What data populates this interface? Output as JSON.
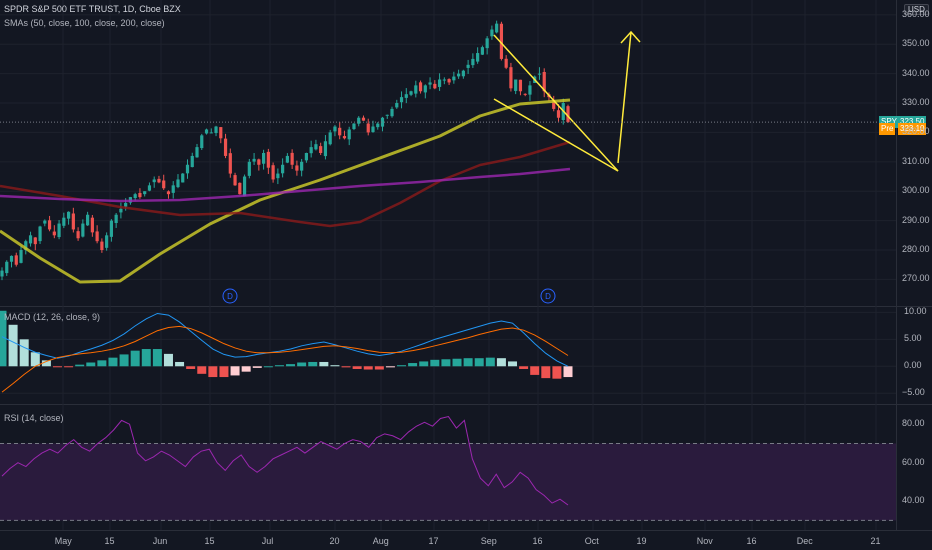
{
  "header": {
    "title": "SPDR S&P 500 ETF TRUST, 1D, Cboe BZX",
    "sma_label": "SMAs (50, close, 100, close, 200, close)",
    "currency": "USD"
  },
  "macd_label": "MACD (12, 26, close, 9)",
  "rsi_label": "RSI (14, close)",
  "last_price": {
    "symbol": "SPY",
    "value": "323.50",
    "color": "#26a69a"
  },
  "pre_price": {
    "symbol": "Pre",
    "value": "323.10",
    "color": "#ff9800"
  },
  "dividend_marker": "D",
  "colors": {
    "up": "#26a69a",
    "down": "#ef5350",
    "sma50": "#c8c629",
    "sma100": "#8b1a1a",
    "sma200": "#9c27b0",
    "pattern": "#ffeb3b",
    "macd": "#2196f3",
    "signal": "#ff6d00",
    "rsi": "#9c27b0"
  },
  "chart_data": [
    {
      "type": "candlestick",
      "title": "SPDR S&P 500 ETF TRUST, 1D, Cboe BZX",
      "x_ticks": [
        "May",
        "15",
        "Jun",
        "15",
        "Jul",
        "20",
        "Aug",
        "17",
        "Sep",
        "16",
        "Oct",
        "19",
        "Nov",
        "16",
        "Dec",
        "21"
      ],
      "y_ticks": [
        270,
        280,
        290,
        300,
        310,
        320,
        330,
        340,
        350,
        360
      ],
      "ylim": [
        263,
        363
      ],
      "close_series": [
        273,
        276,
        278,
        275,
        280,
        283,
        285,
        282,
        288,
        290,
        287,
        285,
        289,
        291,
        293,
        287,
        284,
        289,
        292,
        286,
        283,
        280,
        285,
        290,
        292,
        294,
        296,
        298,
        299,
        298,
        300,
        302,
        304,
        303,
        301,
        299,
        302,
        304,
        306,
        309,
        312,
        315,
        319,
        321,
        320,
        322,
        318,
        312,
        306,
        302,
        299,
        305,
        310,
        311,
        309,
        313,
        308,
        304,
        306,
        309,
        312,
        309,
        307,
        310,
        313,
        315,
        316,
        313,
        317,
        320,
        322,
        319,
        318,
        321,
        323,
        325,
        324,
        320,
        322,
        323,
        325,
        326,
        328,
        330,
        332,
        333,
        334,
        336,
        334,
        336,
        337,
        335,
        338,
        338,
        337,
        339,
        340,
        341,
        343,
        345,
        347,
        349,
        352,
        355,
        357,
        345,
        342,
        335,
        338,
        334,
        333,
        336,
        339,
        340,
        334,
        332,
        328,
        325,
        330,
        323.5
      ],
      "sma": [
        {
          "name": "SMA 50",
          "start": 273,
          "end": 333
        },
        {
          "name": "SMA 100",
          "start": 303,
          "end": 320
        },
        {
          "name": "SMA 200",
          "start": 301,
          "end": 311
        }
      ],
      "annotations": [
        "falling wedge",
        "upward arrow"
      ],
      "last_price": 323.5,
      "pre_market": 323.1
    },
    {
      "type": "histogram",
      "title": "MACD (12, 26, close, 9)",
      "y_ticks": [
        10.0,
        5.0,
        0.0,
        -5.0
      ],
      "ylim": [
        -7,
        11
      ],
      "series": [
        {
          "name": "MACD",
          "values": [
            5.5,
            4.5,
            3.5,
            2.6,
            2.0,
            1.5,
            1.9,
            2.6,
            3.2,
            3.9,
            4.8,
            6.0,
            7.5,
            8.8,
            9.8,
            9.5,
            8.2,
            6.5,
            4.8,
            3.2,
            2.2,
            1.7,
            1.8,
            2.2,
            2.5,
            2.8,
            3.2,
            3.8,
            4.2,
            4.5,
            4.0,
            3.4,
            2.8,
            2.3,
            2.0,
            2.3,
            2.8,
            3.5,
            4.2,
            5.0,
            5.6,
            6.2,
            6.8,
            7.4,
            8.0,
            8.4,
            8.0,
            6.2,
            4.2,
            2.4,
            1.0,
            0.0
          ]
        },
        {
          "name": "Signal",
          "values": [
            -4.8,
            -3.2,
            -1.5,
            0.0,
            0.9,
            1.6,
            2.0,
            2.3,
            2.5,
            2.8,
            3.2,
            3.8,
            4.6,
            5.6,
            6.6,
            7.2,
            7.4,
            7.0,
            6.2,
            5.2,
            4.2,
            3.4,
            2.8,
            2.5,
            2.5,
            2.6,
            2.8,
            3.1,
            3.4,
            3.7,
            3.8,
            3.6,
            3.3,
            2.9,
            2.6,
            2.5,
            2.6,
            2.9,
            3.3,
            3.8,
            4.3,
            4.8,
            5.3,
            5.9,
            6.4,
            6.9,
            7.1,
            6.7,
            5.8,
            4.6,
            3.3,
            2.0
          ]
        }
      ]
    },
    {
      "type": "line",
      "title": "RSI (14, close)",
      "y_ticks": [
        80.0,
        60.0,
        40.0
      ],
      "ylim": [
        25,
        90
      ],
      "bands": [
        70,
        30
      ],
      "values": [
        53,
        57,
        60,
        58,
        62,
        65,
        67,
        65,
        69,
        72,
        68,
        66,
        70,
        73,
        77,
        82,
        80,
        65,
        61,
        63,
        66,
        64,
        61,
        58,
        63,
        66,
        67,
        60,
        56,
        61,
        64,
        58,
        55,
        58,
        62,
        64,
        66,
        68,
        65,
        68,
        71,
        69,
        67,
        70,
        72,
        71,
        68,
        73,
        75,
        74,
        72,
        76,
        79,
        81,
        79,
        83,
        84,
        78,
        82,
        62,
        52,
        48,
        54,
        47,
        50,
        55,
        52,
        46,
        43,
        39,
        41,
        38
      ]
    }
  ]
}
